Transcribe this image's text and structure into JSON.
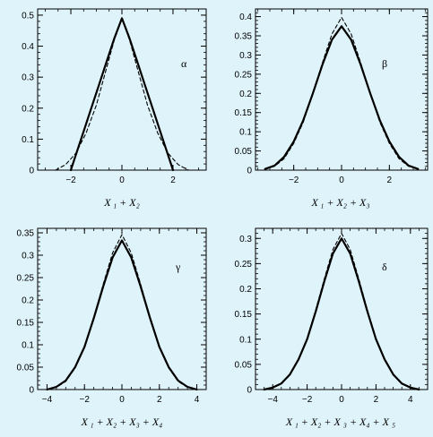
{
  "figure": {
    "background": "#dff3fa",
    "line_color": "#000000"
  },
  "chart_data": [
    {
      "type": "line",
      "panel_label": "α",
      "xlabel": "X ₁ + X₂",
      "ylabel": "",
      "xlim": [
        -3.3,
        3.3
      ],
      "ylim": [
        0,
        0.52
      ],
      "xticks": [
        -2,
        0,
        2
      ],
      "xtick_labels": [
        "−2",
        "0",
        "2"
      ],
      "yticks": [
        0,
        0.1,
        0.2,
        0.3,
        0.4,
        0.5
      ],
      "ytick_labels": [
        "0",
        "0.1",
        "0.2",
        "0.3",
        "0.4",
        "0.5"
      ],
      "series": [
        {
          "style": "solid",
          "x": [
            -2.0,
            -1.8,
            -1.5,
            -1.2,
            -0.9,
            -0.6,
            -0.3,
            0.0,
            0.3,
            0.6,
            0.9,
            1.2,
            1.5,
            1.8,
            2.0
          ],
          "y": [
            0.0,
            0.05,
            0.125,
            0.2,
            0.275,
            0.35,
            0.425,
            0.49,
            0.425,
            0.35,
            0.275,
            0.2,
            0.125,
            0.05,
            0.0
          ]
        },
        {
          "style": "dashed",
          "x": [
            -2.6,
            -2.2,
            -1.8,
            -1.4,
            -1.0,
            -0.6,
            -0.3,
            0.0,
            0.3,
            0.6,
            1.0,
            1.4,
            1.8,
            2.2,
            2.6
          ],
          "y": [
            0.0,
            0.018,
            0.055,
            0.12,
            0.21,
            0.33,
            0.42,
            0.49,
            0.42,
            0.33,
            0.21,
            0.12,
            0.055,
            0.018,
            0.0
          ]
        }
      ]
    },
    {
      "type": "line",
      "panel_label": "β",
      "xlabel": "X ₁ + X₂ + X₃",
      "ylabel": "",
      "xlim": [
        -3.6,
        3.6
      ],
      "ylim": [
        0,
        0.42
      ],
      "xticks": [
        -2,
        0,
        2
      ],
      "xtick_labels": [
        "−2",
        "0",
        "2"
      ],
      "yticks": [
        0,
        0.05,
        0.1,
        0.15,
        0.2,
        0.25,
        0.3,
        0.35,
        0.4
      ],
      "ytick_labels": [
        "0",
        "0.05",
        "0.1",
        "0.15",
        "0.2",
        "0.25",
        "0.3",
        "0.35",
        "0.4"
      ],
      "series": [
        {
          "style": "solid",
          "x": [
            -3.2,
            -2.8,
            -2.4,
            -2.0,
            -1.6,
            -1.2,
            -0.8,
            -0.4,
            0.0,
            0.4,
            0.8,
            1.2,
            1.6,
            2.0,
            2.4,
            2.8,
            3.2
          ],
          "y": [
            0.003,
            0.012,
            0.035,
            0.075,
            0.13,
            0.2,
            0.275,
            0.34,
            0.375,
            0.34,
            0.275,
            0.2,
            0.13,
            0.075,
            0.035,
            0.012,
            0.003
          ]
        },
        {
          "style": "dashed",
          "x": [
            -3.2,
            -2.8,
            -2.4,
            -2.0,
            -1.6,
            -1.2,
            -0.8,
            -0.4,
            0.0,
            0.4,
            0.8,
            1.2,
            1.6,
            2.0,
            2.4,
            2.8,
            3.2
          ],
          "y": [
            0.003,
            0.01,
            0.03,
            0.07,
            0.125,
            0.2,
            0.28,
            0.355,
            0.398,
            0.355,
            0.28,
            0.2,
            0.125,
            0.07,
            0.03,
            0.01,
            0.003
          ]
        }
      ]
    },
    {
      "type": "line",
      "panel_label": "γ",
      "xlabel": "X ₁ + X₂ + X₃ + X₄",
      "ylabel": "",
      "xlim": [
        -4.5,
        4.5
      ],
      "ylim": [
        0,
        0.36
      ],
      "xticks": [
        -4,
        -2,
        0,
        2,
        4
      ],
      "xtick_labels": [
        "−4",
        "−2",
        "0",
        "2",
        "4"
      ],
      "yticks": [
        0,
        0.05,
        0.1,
        0.15,
        0.2,
        0.25,
        0.3,
        0.35
      ],
      "ytick_labels": [
        "0",
        "0.05",
        "0.1",
        "0.15",
        "0.2",
        "0.25",
        "0.3",
        "0.35"
      ],
      "series": [
        {
          "style": "solid",
          "x": [
            -4.0,
            -3.5,
            -3.0,
            -2.5,
            -2.0,
            -1.5,
            -1.0,
            -0.5,
            0.0,
            0.5,
            1.0,
            1.5,
            2.0,
            2.5,
            3.0,
            3.5,
            4.0
          ],
          "y": [
            0.0,
            0.006,
            0.02,
            0.05,
            0.095,
            0.16,
            0.23,
            0.295,
            0.333,
            0.295,
            0.23,
            0.16,
            0.095,
            0.05,
            0.02,
            0.006,
            0.0
          ]
        },
        {
          "style": "dashed",
          "x": [
            -4.0,
            -3.5,
            -3.0,
            -2.5,
            -2.0,
            -1.5,
            -1.0,
            -0.5,
            0.0,
            0.5,
            1.0,
            1.5,
            2.0,
            2.5,
            3.0,
            3.5,
            4.0
          ],
          "y": [
            0.0,
            0.005,
            0.018,
            0.048,
            0.095,
            0.162,
            0.235,
            0.305,
            0.346,
            0.305,
            0.235,
            0.162,
            0.095,
            0.048,
            0.018,
            0.005,
            0.0
          ]
        }
      ]
    },
    {
      "type": "line",
      "panel_label": "δ",
      "xlabel": "X ₁ + X₂ + X ₃ + X₄ + X ₅",
      "ylabel": "",
      "xlim": [
        -5.0,
        5.0
      ],
      "ylim": [
        0,
        0.32
      ],
      "xticks": [
        -4,
        -2,
        0,
        2,
        4
      ],
      "xtick_labels": [
        "−4",
        "−2",
        "0",
        "2",
        "4"
      ],
      "yticks": [
        0,
        0.05,
        0.1,
        0.15,
        0.2,
        0.25,
        0.3
      ],
      "ytick_labels": [
        "0",
        "0.05",
        "0.1",
        "0.15",
        "0.2",
        "0.25",
        "0.3"
      ],
      "series": [
        {
          "style": "solid",
          "x": [
            -4.5,
            -4.0,
            -3.5,
            -3.0,
            -2.5,
            -2.0,
            -1.5,
            -1.0,
            -0.5,
            0.0,
            0.5,
            1.0,
            1.5,
            2.0,
            2.5,
            3.0,
            3.5,
            4.0,
            4.5
          ],
          "y": [
            0.0,
            0.004,
            0.012,
            0.03,
            0.06,
            0.1,
            0.155,
            0.215,
            0.27,
            0.3,
            0.27,
            0.215,
            0.155,
            0.1,
            0.06,
            0.03,
            0.012,
            0.004,
            0.0
          ]
        },
        {
          "style": "dashed",
          "x": [
            -4.5,
            -4.0,
            -3.5,
            -3.0,
            -2.5,
            -2.0,
            -1.5,
            -1.0,
            -0.5,
            0.0,
            0.5,
            1.0,
            1.5,
            2.0,
            2.5,
            3.0,
            3.5,
            4.0,
            4.5
          ],
          "y": [
            0.0,
            0.003,
            0.011,
            0.029,
            0.06,
            0.102,
            0.158,
            0.22,
            0.278,
            0.31,
            0.278,
            0.22,
            0.158,
            0.102,
            0.06,
            0.029,
            0.011,
            0.003,
            0.0
          ]
        }
      ]
    }
  ]
}
